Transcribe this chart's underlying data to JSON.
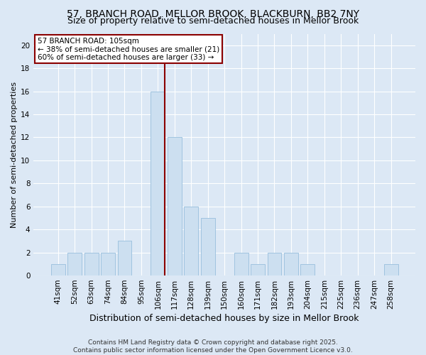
{
  "title1": "57, BRANCH ROAD, MELLOR BROOK, BLACKBURN, BB2 7NY",
  "title2": "Size of property relative to semi-detached houses in Mellor Brook",
  "xlabel": "Distribution of semi-detached houses by size in Mellor Brook",
  "ylabel": "Number of semi-detached properties",
  "categories": [
    "41sqm",
    "52sqm",
    "63sqm",
    "74sqm",
    "84sqm",
    "95sqm",
    "106sqm",
    "117sqm",
    "128sqm",
    "139sqm",
    "150sqm",
    "160sqm",
    "171sqm",
    "182sqm",
    "193sqm",
    "204sqm",
    "215sqm",
    "225sqm",
    "236sqm",
    "247sqm",
    "258sqm"
  ],
  "values": [
    1,
    2,
    2,
    2,
    3,
    0,
    16,
    12,
    6,
    5,
    0,
    2,
    1,
    2,
    2,
    1,
    0,
    0,
    0,
    0,
    1
  ],
  "bar_color": "#ccdff0",
  "bar_edgecolor": "#a0c4e0",
  "vline_index": 6,
  "vline_color": "#8b0000",
  "annotation_title": "57 BRANCH ROAD: 105sqm",
  "annotation_line1": "← 38% of semi-detached houses are smaller (21)",
  "annotation_line2": "60% of semi-detached houses are larger (33) →",
  "annotation_box_facecolor": "#ffffff",
  "annotation_box_edgecolor": "#8b0000",
  "ylim_max": 21,
  "yticks": [
    0,
    2,
    4,
    6,
    8,
    10,
    12,
    14,
    16,
    18,
    20
  ],
  "footer1": "Contains HM Land Registry data © Crown copyright and database right 2025.",
  "footer2": "Contains public sector information licensed under the Open Government Licence v3.0.",
  "bg_color": "#dce8f5",
  "grid_color": "#ffffff",
  "title1_fontsize": 10,
  "title2_fontsize": 9,
  "xlabel_fontsize": 9,
  "ylabel_fontsize": 8,
  "tick_fontsize": 7.5,
  "footer_fontsize": 6.5
}
